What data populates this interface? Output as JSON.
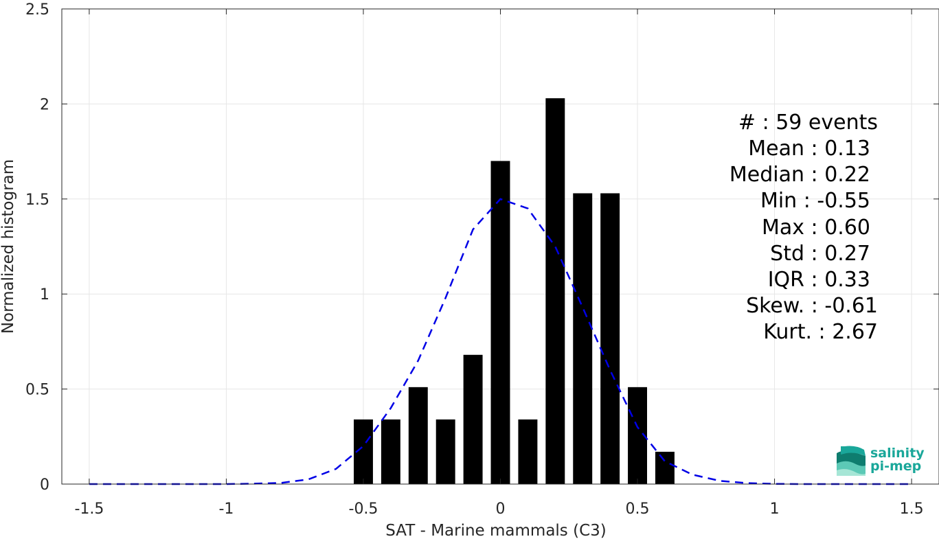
{
  "chart_data": {
    "type": "bar",
    "xlabel": "SAT - Marine mammals (C3)",
    "ylabel": "Normalized histogram",
    "xlim": [
      -1.6,
      1.6
    ],
    "ylim": [
      0,
      2.5
    ],
    "xticks": [
      -1.5,
      -1,
      -0.5,
      0,
      0.5,
      1,
      1.5
    ],
    "xtick_labels": [
      "-1.5",
      "-1",
      "-0.5",
      "0",
      "0.5",
      "1",
      "1.5"
    ],
    "yticks": [
      0,
      0.5,
      1,
      1.5,
      2,
      2.5
    ],
    "ytick_labels": [
      "0",
      "0.5",
      "1",
      "1.5",
      "2",
      "2.5"
    ],
    "grid": true,
    "bar_width": 0.07,
    "bar_color": "#000000",
    "bars": {
      "x": [
        -0.5,
        -0.4,
        -0.3,
        -0.2,
        -0.1,
        0.0,
        0.1,
        0.2,
        0.3,
        0.4,
        0.5,
        0.6
      ],
      "values": [
        0.34,
        0.34,
        0.51,
        0.34,
        0.68,
        1.7,
        0.34,
        2.03,
        1.53,
        1.53,
        0.51,
        0.17
      ]
    },
    "fit_curve": {
      "style": "dashed",
      "color": "#0000e6",
      "x": [
        -1.5,
        -1.4,
        -1.3,
        -1.2,
        -1.1,
        -1.0,
        -0.9,
        -0.8,
        -0.7,
        -0.6,
        -0.5,
        -0.4,
        -0.3,
        -0.2,
        -0.1,
        0.0,
        0.1,
        0.2,
        0.3,
        0.4,
        0.5,
        0.6,
        0.7,
        0.8,
        0.9,
        1.0,
        1.1,
        1.2,
        1.3,
        1.4,
        1.5
      ],
      "y": [
        0,
        0,
        0,
        0,
        0,
        0,
        0.002,
        0.006,
        0.025,
        0.08,
        0.2,
        0.4,
        0.65,
        0.98,
        1.34,
        1.5,
        1.45,
        1.25,
        0.93,
        0.6,
        0.3,
        0.12,
        0.05,
        0.017,
        0.005,
        0.001,
        0,
        0,
        0,
        0,
        0
      ]
    },
    "stats": [
      {
        "label": "#  : 59 events"
      },
      {
        "label": "Mean : 0.13"
      },
      {
        "label": "Median : 0.22"
      },
      {
        "label": "Min : -0.55"
      },
      {
        "label": "Max : 0.60"
      },
      {
        "label": "Std : 0.27"
      },
      {
        "label": "IQR : 0.33"
      },
      {
        "label": "Skew. : -0.61"
      },
      {
        "label": "Kurt. : 2.67"
      }
    ]
  },
  "logo": {
    "line1": "salinity",
    "line2": "pi-mep",
    "colors": [
      "#0e7d6f",
      "#1aa79a",
      "#5cc9b6",
      "#a6e6d6"
    ]
  }
}
